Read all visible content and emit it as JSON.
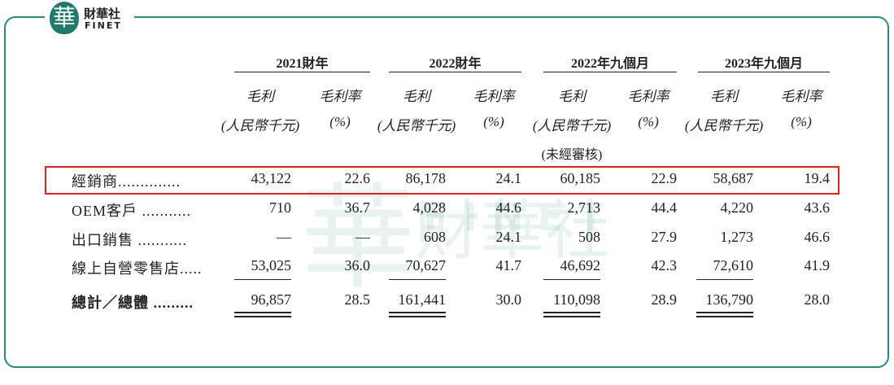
{
  "logo": {
    "mark": "華",
    "name": "財華社",
    "latin": "FINET"
  },
  "watermark": {
    "name": "財華社",
    "latin": "FINET"
  },
  "table": {
    "groups": [
      "2021財年",
      "2022財年",
      "2022年九個月",
      "2023年九個月"
    ],
    "subheaders": [
      {
        "line1": "毛利",
        "line2": "(人民幣千元)"
      },
      {
        "line1": "毛利率",
        "line2": "(%)"
      },
      {
        "line1": "毛利",
        "line2": "(人民幣千元)"
      },
      {
        "line1": "毛利率",
        "line2": "(%)"
      },
      {
        "line1": "毛利",
        "line2": "(人民幣千元)",
        "line3": "(未經審核)"
      },
      {
        "line1": "毛利率",
        "line2": "(%)"
      },
      {
        "line1": "毛利",
        "line2": "(人民幣千元)"
      },
      {
        "line1": "毛利率",
        "line2": "(%)"
      }
    ],
    "rows": [
      {
        "label": "經銷商..............",
        "cells": [
          "43,122",
          "22.6",
          "86,178",
          "24.1",
          "60,185",
          "22.9",
          "58,687",
          "19.4"
        ]
      },
      {
        "label": "OEM客戶 ...........",
        "cells": [
          "710",
          "36.7",
          "4,028",
          "44.6",
          "2,713",
          "44.4",
          "4,220",
          "43.6"
        ]
      },
      {
        "label": "出口銷售 ...........",
        "cells": [
          "—",
          "—",
          "608",
          "24.1",
          "508",
          "27.9",
          "1,273",
          "46.6"
        ]
      },
      {
        "label": "線上自營零售店.....",
        "cells": [
          "53,025",
          "36.0",
          "70,627",
          "41.7",
          "46,692",
          "42.3",
          "72,610",
          "41.9"
        ]
      },
      {
        "label": "總計／總體 .........",
        "cells": [
          "96,857",
          "28.5",
          "161,441",
          "30.0",
          "110,098",
          "28.9",
          "136,790",
          "28.0"
        ]
      }
    ]
  }
}
